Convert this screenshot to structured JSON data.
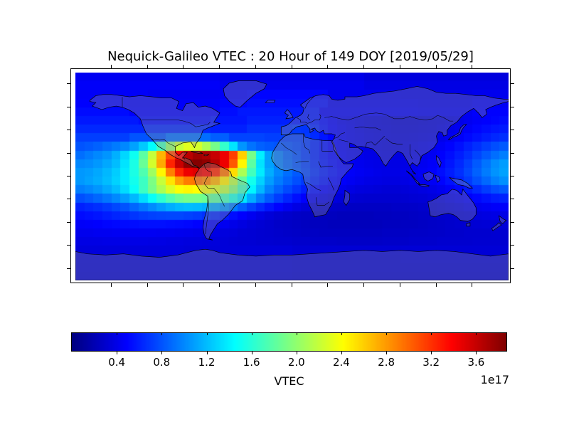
{
  "figure": {
    "title": "Nequick-Galileo VTEC : 20 Hour of 149 DOY [2019/05/29]",
    "background_color": "#ffffff"
  },
  "chart_data": {
    "type": "heatmap",
    "title": "Nequick-Galileo VTEC : 20 Hour of 149 DOY [2019/05/29]",
    "colorbar_label": "VTEC",
    "offset_text": "1e17",
    "colormap": "jet",
    "vmin": 0.0,
    "vmax": 3.87,
    "colorbar_ticks": [
      {
        "value": 0.4,
        "label": "0.4"
      },
      {
        "value": 0.8,
        "label": "0.8"
      },
      {
        "value": 1.2,
        "label": "1.2"
      },
      {
        "value": 1.6,
        "label": "1.6"
      },
      {
        "value": 2.0,
        "label": "2.0"
      },
      {
        "value": 2.4,
        "label": "2.4"
      },
      {
        "value": 2.8,
        "label": "2.8"
      },
      {
        "value": 3.2,
        "label": "3.2"
      },
      {
        "value": 3.6,
        "label": "3.6"
      }
    ],
    "lon_range": [
      -180,
      180
    ],
    "lat_range": [
      -90,
      90
    ],
    "grid_rows": 24,
    "grid_cols": 48,
    "basemap": "world-coastlines-and-country-borders",
    "values_1e17": [
      [
        0.44,
        0.44,
        0.44,
        0.44,
        0.44,
        0.44,
        0.44,
        0.44,
        0.44,
        0.44,
        0.44,
        0.44,
        0.44,
        0.44,
        0.44,
        0.44,
        0.4,
        0.4,
        0.4,
        0.4,
        0.4,
        0.4,
        0.4,
        0.4,
        0.4,
        0.4,
        0.4,
        0.4,
        0.4,
        0.4,
        0.4,
        0.4,
        0.36,
        0.36,
        0.36,
        0.36,
        0.36,
        0.36,
        0.36,
        0.36,
        0.36,
        0.36,
        0.36,
        0.36,
        0.36,
        0.36,
        0.36,
        0.36
      ],
      [
        0.46,
        0.46,
        0.46,
        0.46,
        0.46,
        0.46,
        0.46,
        0.46,
        0.46,
        0.46,
        0.46,
        0.46,
        0.46,
        0.46,
        0.46,
        0.46,
        0.42,
        0.42,
        0.42,
        0.42,
        0.42,
        0.42,
        0.42,
        0.42,
        0.42,
        0.42,
        0.42,
        0.42,
        0.42,
        0.42,
        0.42,
        0.42,
        0.38,
        0.38,
        0.38,
        0.38,
        0.38,
        0.38,
        0.38,
        0.38,
        0.38,
        0.38,
        0.38,
        0.38,
        0.38,
        0.38,
        0.38,
        0.38
      ],
      [
        0.46,
        0.46,
        0.46,
        0.46,
        0.46,
        0.46,
        0.46,
        0.46,
        0.44,
        0.44,
        0.44,
        0.44,
        0.44,
        0.44,
        0.44,
        0.44,
        0.46,
        0.46,
        0.46,
        0.5,
        0.5,
        0.5,
        0.5,
        0.5,
        0.5,
        0.5,
        0.5,
        0.5,
        0.42,
        0.42,
        0.42,
        0.42,
        0.42,
        0.42,
        0.42,
        0.42,
        0.4,
        0.4,
        0.4,
        0.4,
        0.4,
        0.4,
        0.4,
        0.4,
        0.42,
        0.42,
        0.42,
        0.42
      ],
      [
        0.48,
        0.48,
        0.48,
        0.48,
        0.48,
        0.46,
        0.46,
        0.46,
        0.46,
        0.46,
        0.46,
        0.46,
        0.46,
        0.46,
        0.46,
        0.46,
        0.5,
        0.5,
        0.5,
        0.53,
        0.53,
        0.53,
        0.53,
        0.53,
        0.53,
        0.53,
        0.53,
        0.53,
        0.43,
        0.43,
        0.43,
        0.43,
        0.43,
        0.43,
        0.43,
        0.43,
        0.43,
        0.43,
        0.42,
        0.42,
        0.42,
        0.42,
        0.42,
        0.42,
        0.45,
        0.45,
        0.45,
        0.45
      ],
      [
        0.52,
        0.52,
        0.52,
        0.52,
        0.52,
        0.52,
        0.48,
        0.48,
        0.48,
        0.48,
        0.48,
        0.48,
        0.48,
        0.48,
        0.48,
        0.48,
        0.53,
        0.53,
        0.57,
        0.57,
        0.57,
        0.57,
        0.57,
        0.57,
        0.57,
        0.57,
        0.57,
        0.45,
        0.45,
        0.45,
        0.45,
        0.45,
        0.45,
        0.45,
        0.45,
        0.45,
        0.45,
        0.45,
        0.44,
        0.44,
        0.44,
        0.44,
        0.44,
        0.44,
        0.48,
        0.48,
        0.48,
        0.48
      ],
      [
        0.57,
        0.57,
        0.57,
        0.57,
        0.57,
        0.57,
        0.57,
        0.52,
        0.52,
        0.52,
        0.52,
        0.52,
        0.52,
        0.52,
        0.52,
        0.56,
        0.56,
        0.56,
        0.56,
        0.6,
        0.6,
        0.6,
        0.6,
        0.6,
        0.58,
        0.58,
        0.58,
        0.52,
        0.46,
        0.42,
        0.4,
        0.38,
        0.36,
        0.35,
        0.34,
        0.33,
        0.33,
        0.33,
        0.34,
        0.35,
        0.36,
        0.38,
        0.4,
        0.43,
        0.46,
        0.48,
        0.5,
        0.52
      ],
      [
        0.63,
        0.63,
        0.63,
        0.63,
        0.63,
        0.63,
        0.63,
        0.63,
        0.63,
        0.63,
        0.63,
        0.63,
        0.63,
        0.63,
        0.63,
        0.6,
        0.6,
        0.6,
        0.6,
        0.66,
        0.66,
        0.66,
        0.66,
        0.66,
        0.7,
        0.68,
        0.62,
        0.54,
        0.48,
        0.44,
        0.41,
        0.39,
        0.37,
        0.36,
        0.35,
        0.34,
        0.34,
        0.34,
        0.35,
        0.36,
        0.38,
        0.4,
        0.43,
        0.46,
        0.5,
        0.53,
        0.56,
        0.58
      ],
      [
        0.72,
        0.72,
        0.72,
        0.72,
        0.72,
        0.72,
        0.8,
        0.8,
        0.8,
        0.8,
        0.9,
        0.9,
        0.9,
        0.9,
        0.9,
        0.84,
        0.84,
        0.74,
        0.74,
        0.74,
        0.74,
        0.72,
        0.72,
        0.72,
        0.72,
        0.7,
        0.64,
        0.56,
        0.5,
        0.45,
        0.42,
        0.4,
        0.38,
        0.37,
        0.36,
        0.35,
        0.35,
        0.36,
        0.37,
        0.38,
        0.4,
        0.43,
        0.47,
        0.51,
        0.55,
        0.59,
        0.63,
        0.66
      ],
      [
        0.8,
        0.82,
        0.85,
        0.9,
        0.95,
        1.0,
        1.1,
        1.25,
        1.45,
        1.7,
        2.0,
        2.2,
        2.3,
        2.25,
        2.1,
        1.9,
        1.65,
        1.35,
        1.05,
        0.92,
        0.85,
        0.82,
        0.8,
        0.78,
        0.75,
        0.7,
        0.62,
        0.55,
        0.49,
        0.45,
        0.42,
        0.4,
        0.38,
        0.37,
        0.36,
        0.36,
        0.37,
        0.38,
        0.4,
        0.42,
        0.45,
        0.49,
        0.54,
        0.6,
        0.66,
        0.72,
        0.78,
        0.82
      ],
      [
        0.9,
        0.95,
        1.0,
        1.05,
        1.15,
        1.3,
        1.5,
        1.8,
        2.2,
        2.7,
        3.1,
        3.4,
        3.65,
        3.75,
        3.7,
        3.6,
        3.45,
        3.15,
        2.6,
        1.9,
        1.4,
        1.1,
        0.95,
        0.85,
        0.78,
        0.7,
        0.62,
        0.55,
        0.5,
        0.46,
        0.43,
        0.41,
        0.39,
        0.38,
        0.37,
        0.37,
        0.38,
        0.39,
        0.41,
        0.44,
        0.48,
        0.53,
        0.59,
        0.66,
        0.74,
        0.82,
        0.9,
        0.96
      ],
      [
        1.0,
        1.02,
        1.06,
        1.12,
        1.2,
        1.35,
        1.55,
        1.85,
        2.25,
        2.75,
        3.25,
        3.6,
        3.8,
        3.85,
        3.8,
        3.65,
        3.45,
        3.05,
        2.45,
        1.8,
        1.35,
        1.1,
        0.96,
        0.87,
        0.8,
        0.72,
        0.64,
        0.57,
        0.52,
        0.48,
        0.45,
        0.42,
        0.4,
        0.39,
        0.38,
        0.38,
        0.39,
        0.41,
        0.43,
        0.46,
        0.5,
        0.56,
        0.63,
        0.72,
        0.82,
        0.92,
        1.02,
        1.08
      ],
      [
        1.06,
        1.08,
        1.12,
        1.18,
        1.26,
        1.38,
        1.55,
        1.75,
        2.05,
        2.45,
        2.9,
        3.25,
        3.45,
        3.5,
        3.42,
        3.25,
        2.95,
        2.55,
        2.1,
        1.7,
        1.38,
        1.14,
        1.0,
        0.9,
        0.82,
        0.74,
        0.66,
        0.59,
        0.54,
        0.5,
        0.46,
        0.44,
        0.42,
        0.4,
        0.39,
        0.39,
        0.4,
        0.42,
        0.45,
        0.48,
        0.53,
        0.59,
        0.66,
        0.75,
        0.85,
        0.95,
        1.04,
        1.1
      ],
      [
        1.06,
        1.1,
        1.14,
        1.2,
        1.28,
        1.38,
        1.52,
        1.68,
        1.92,
        2.2,
        2.52,
        2.78,
        2.92,
        2.95,
        2.88,
        2.72,
        2.48,
        2.15,
        1.82,
        1.52,
        1.28,
        1.08,
        0.95,
        0.86,
        0.78,
        0.7,
        0.62,
        0.56,
        0.51,
        0.47,
        0.44,
        0.41,
        0.39,
        0.38,
        0.37,
        0.37,
        0.38,
        0.4,
        0.42,
        0.45,
        0.49,
        0.55,
        0.62,
        0.7,
        0.79,
        0.88,
        0.97,
        1.03
      ],
      [
        0.96,
        1.0,
        1.05,
        1.12,
        1.2,
        1.32,
        1.48,
        1.68,
        1.9,
        2.1,
        2.28,
        2.4,
        2.45,
        2.42,
        2.36,
        2.28,
        2.15,
        1.95,
        1.7,
        1.42,
        1.18,
        0.98,
        0.86,
        0.76,
        0.68,
        0.6,
        0.53,
        0.48,
        0.44,
        0.41,
        0.38,
        0.36,
        0.35,
        0.34,
        0.33,
        0.33,
        0.34,
        0.35,
        0.37,
        0.39,
        0.42,
        0.46,
        0.51,
        0.57,
        0.64,
        0.71,
        0.78,
        0.82
      ],
      [
        0.78,
        0.82,
        0.87,
        0.93,
        1.0,
        1.08,
        1.18,
        1.32,
        1.48,
        1.62,
        1.75,
        1.85,
        1.9,
        1.9,
        1.86,
        1.8,
        1.7,
        1.55,
        1.36,
        1.14,
        0.96,
        0.82,
        0.71,
        0.62,
        0.54,
        0.48,
        0.43,
        0.39,
        0.36,
        0.34,
        0.32,
        0.31,
        0.3,
        0.3,
        0.3,
        0.3,
        0.31,
        0.32,
        0.33,
        0.35,
        0.37,
        0.4,
        0.43,
        0.47,
        0.51,
        0.55,
        0.59,
        0.61
      ],
      [
        0.6,
        0.63,
        0.66,
        0.7,
        0.75,
        0.8,
        0.87,
        0.94,
        1.01,
        1.08,
        1.14,
        1.18,
        1.2,
        1.19,
        1.16,
        1.11,
        1.04,
        0.95,
        0.84,
        0.73,
        0.64,
        0.56,
        0.49,
        0.43,
        0.38,
        0.34,
        0.31,
        0.29,
        0.28,
        0.27,
        0.26,
        0.26,
        0.26,
        0.26,
        0.26,
        0.27,
        0.27,
        0.28,
        0.29,
        0.31,
        0.33,
        0.35,
        0.37,
        0.4,
        0.42,
        0.44,
        0.46,
        0.47
      ],
      [
        0.52,
        0.54,
        0.56,
        0.59,
        0.62,
        0.65,
        0.68,
        0.71,
        0.73,
        0.74,
        0.75,
        0.75,
        0.73,
        0.71,
        0.67,
        0.63,
        0.58,
        0.53,
        0.48,
        0.43,
        0.38,
        0.34,
        0.31,
        0.29,
        0.27,
        0.26,
        0.25,
        0.24,
        0.24,
        0.23,
        0.23,
        0.23,
        0.23,
        0.24,
        0.24,
        0.25,
        0.25,
        0.26,
        0.27,
        0.28,
        0.3,
        0.31,
        0.33,
        0.34,
        0.36,
        0.37,
        0.38,
        0.39
      ],
      [
        0.46,
        0.47,
        0.48,
        0.5,
        0.51,
        0.52,
        0.53,
        0.54,
        0.54,
        0.54,
        0.53,
        0.52,
        0.51,
        0.49,
        0.47,
        0.45,
        0.43,
        0.4,
        0.37,
        0.34,
        0.32,
        0.3,
        0.28,
        0.27,
        0.26,
        0.25,
        0.24,
        0.24,
        0.23,
        0.23,
        0.23,
        0.23,
        0.23,
        0.23,
        0.24,
        0.24,
        0.25,
        0.25,
        0.26,
        0.27,
        0.28,
        0.29,
        0.3,
        0.31,
        0.32,
        0.33,
        0.33,
        0.34
      ],
      [
        0.42,
        0.42,
        0.43,
        0.43,
        0.44,
        0.44,
        0.44,
        0.44,
        0.44,
        0.43,
        0.43,
        0.42,
        0.41,
        0.4,
        0.39,
        0.38,
        0.36,
        0.35,
        0.33,
        0.32,
        0.31,
        0.3,
        0.29,
        0.28,
        0.27,
        0.26,
        0.26,
        0.25,
        0.25,
        0.25,
        0.25,
        0.25,
        0.25,
        0.25,
        0.26,
        0.26,
        0.26,
        0.27,
        0.27,
        0.28,
        0.28,
        0.29,
        0.29,
        0.3,
        0.3,
        0.3,
        0.31,
        0.31
      ],
      [
        0.38,
        0.38,
        0.38,
        0.39,
        0.39,
        0.39,
        0.39,
        0.39,
        0.38,
        0.38,
        0.37,
        0.37,
        0.36,
        0.36,
        0.35,
        0.35,
        0.34,
        0.33,
        0.32,
        0.32,
        0.31,
        0.31,
        0.3,
        0.3,
        0.29,
        0.29,
        0.28,
        0.28,
        0.28,
        0.27,
        0.27,
        0.27,
        0.27,
        0.27,
        0.28,
        0.28,
        0.28,
        0.29,
        0.29,
        0.29,
        0.3,
        0.3,
        0.3,
        0.3,
        0.31,
        0.31,
        0.31,
        0.31
      ],
      [
        0.35,
        0.35,
        0.35,
        0.35,
        0.35,
        0.35,
        0.35,
        0.35,
        0.35,
        0.35,
        0.35,
        0.35,
        0.34,
        0.34,
        0.34,
        0.34,
        0.34,
        0.34,
        0.34,
        0.34,
        0.34,
        0.34,
        0.34,
        0.34,
        0.32,
        0.32,
        0.32,
        0.32,
        0.32,
        0.32,
        0.32,
        0.32,
        0.32,
        0.32,
        0.32,
        0.32,
        0.33,
        0.33,
        0.33,
        0.33,
        0.33,
        0.33,
        0.33,
        0.33,
        0.33,
        0.33,
        0.33,
        0.33
      ],
      [
        0.33,
        0.33,
        0.33,
        0.33,
        0.33,
        0.33,
        0.33,
        0.33,
        0.33,
        0.33,
        0.33,
        0.33,
        0.32,
        0.32,
        0.32,
        0.32,
        0.32,
        0.32,
        0.32,
        0.32,
        0.32,
        0.32,
        0.32,
        0.32,
        0.31,
        0.31,
        0.31,
        0.31,
        0.31,
        0.31,
        0.31,
        0.31,
        0.31,
        0.31,
        0.31,
        0.31,
        0.32,
        0.32,
        0.32,
        0.32,
        0.32,
        0.32,
        0.32,
        0.32,
        0.32,
        0.32,
        0.32,
        0.32
      ],
      [
        0.32,
        0.32,
        0.32,
        0.32,
        0.32,
        0.32,
        0.32,
        0.32,
        0.32,
        0.32,
        0.32,
        0.32,
        0.32,
        0.32,
        0.32,
        0.32,
        0.32,
        0.32,
        0.32,
        0.32,
        0.32,
        0.32,
        0.32,
        0.32,
        0.31,
        0.31,
        0.31,
        0.31,
        0.31,
        0.31,
        0.31,
        0.31,
        0.31,
        0.31,
        0.31,
        0.31,
        0.31,
        0.31,
        0.31,
        0.31,
        0.31,
        0.31,
        0.31,
        0.31,
        0.31,
        0.31,
        0.31,
        0.31
      ],
      [
        0.31,
        0.31,
        0.31,
        0.31,
        0.31,
        0.31,
        0.31,
        0.31,
        0.31,
        0.31,
        0.31,
        0.31,
        0.31,
        0.31,
        0.31,
        0.31,
        0.31,
        0.31,
        0.31,
        0.31,
        0.31,
        0.31,
        0.31,
        0.31,
        0.3,
        0.3,
        0.3,
        0.3,
        0.3,
        0.3,
        0.3,
        0.3,
        0.3,
        0.3,
        0.3,
        0.3,
        0.3,
        0.3,
        0.3,
        0.3,
        0.3,
        0.3,
        0.3,
        0.3,
        0.3,
        0.3,
        0.3,
        0.3
      ]
    ]
  }
}
